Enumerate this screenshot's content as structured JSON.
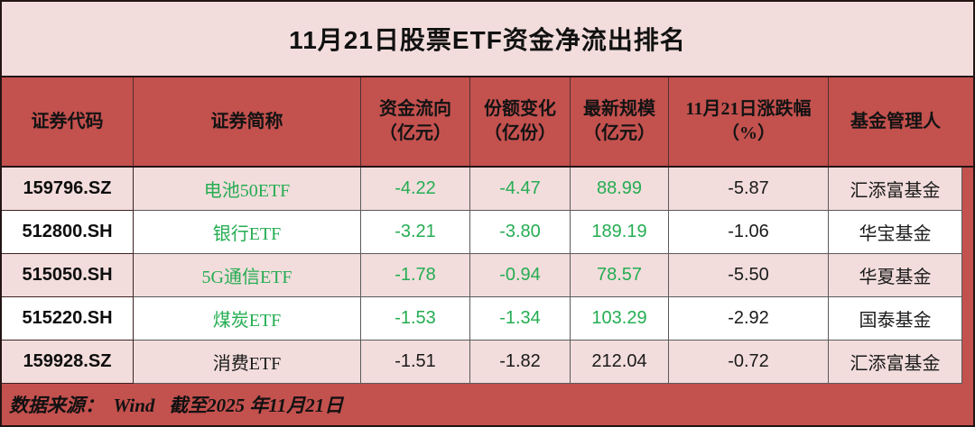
{
  "title": "11月21日股票ETF资金净流出排名",
  "columns": {
    "code": "证券代码",
    "name": "证券简称",
    "flow": "资金流向\n（亿元）",
    "share_change": "份额变化\n（亿份）",
    "scale": "最新规模\n（亿元）",
    "change_pct": "11月21日涨跌幅\n（%）",
    "manager": "基金管理人"
  },
  "rows": [
    {
      "code": "159796.SZ",
      "name": "电池50ETF",
      "flow": "-4.22",
      "share_change": "-4.47",
      "scale": "88.99",
      "change_pct": "-5.87",
      "manager": "汇添富基金",
      "green": true
    },
    {
      "code": "512800.SH",
      "name": "银行ETF",
      "flow": "-3.21",
      "share_change": "-3.80",
      "scale": "189.19",
      "change_pct": "-1.06",
      "manager": "华宝基金",
      "green": true
    },
    {
      "code": "515050.SH",
      "name": "5G通信ETF",
      "flow": "-1.78",
      "share_change": "-0.94",
      "scale": "78.57",
      "change_pct": "-5.50",
      "manager": "华夏基金",
      "green": true
    },
    {
      "code": "515220.SH",
      "name": "煤炭ETF",
      "flow": "-1.53",
      "share_change": "-1.34",
      "scale": "103.29",
      "change_pct": "-2.92",
      "manager": "国泰基金",
      "green": true
    },
    {
      "code": "159928.SZ",
      "name": "消费ETF",
      "flow": "-1.51",
      "share_change": "-1.82",
      "scale": "212.04",
      "change_pct": "-0.72",
      "manager": "汇添富基金",
      "green": false
    }
  ],
  "footer": {
    "source_text": "数据来源：  Wind   截至2025 年11月21日"
  },
  "colors": {
    "accent_red": "#c3514e",
    "light_pink": "#f2dddc",
    "row_white": "#ffffff",
    "green_value": "#25ad52",
    "text_black": "#111111",
    "border_dark": "#241414"
  },
  "chart_data": {
    "type": "table",
    "title": "11月21日股票ETF资金净流出排名",
    "columns": [
      "证券代码",
      "证券简称",
      "资金流向（亿元）",
      "份额变化（亿份）",
      "最新规模（亿元）",
      "11月21日涨跌幅（%）",
      "基金管理人"
    ],
    "rows": [
      [
        "159796.SZ",
        "电池50ETF",
        -4.22,
        -4.47,
        88.99,
        -5.87,
        "汇添富基金"
      ],
      [
        "512800.SH",
        "银行ETF",
        -3.21,
        -3.8,
        189.19,
        -1.06,
        "华宝基金"
      ],
      [
        "515050.SH",
        "5G通信ETF",
        -1.78,
        -0.94,
        78.57,
        -5.5,
        "华夏基金"
      ],
      [
        "515220.SH",
        "煤炭ETF",
        -1.53,
        -1.34,
        103.29,
        -2.92,
        "国泰基金"
      ],
      [
        "159928.SZ",
        "消费ETF",
        -1.51,
        -1.82,
        212.04,
        -0.72,
        "汇添富基金"
      ]
    ],
    "notes": "数据来源：Wind 截至2025年11月21日"
  }
}
